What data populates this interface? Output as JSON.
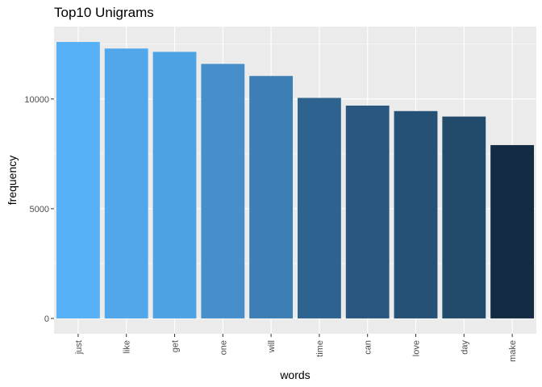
{
  "chart_data": {
    "type": "bar",
    "title": "Top10 Unigrams",
    "xlabel": "words",
    "ylabel": "frequency",
    "categories": [
      "just",
      "like",
      "get",
      "one",
      "will",
      "time",
      "can",
      "love",
      "day",
      "make"
    ],
    "values": [
      12600,
      12300,
      12150,
      11600,
      11050,
      10050,
      9700,
      9450,
      9200,
      7900
    ],
    "bar_colors": [
      "#56b1f7",
      "#51a7ea",
      "#4da2e3",
      "#468fcb",
      "#3d7fb5",
      "#2e628f",
      "#29577f",
      "#265177",
      "#224a6b",
      "#142b44"
    ],
    "ylim": [
      -700,
      13300
    ],
    "yticks": [
      0,
      5000,
      10000
    ],
    "ytick_labels": [
      "0",
      "5000",
      "10000"
    ],
    "grid": true,
    "panel_background": "#ebebeb",
    "grid_color": "#ffffff"
  }
}
